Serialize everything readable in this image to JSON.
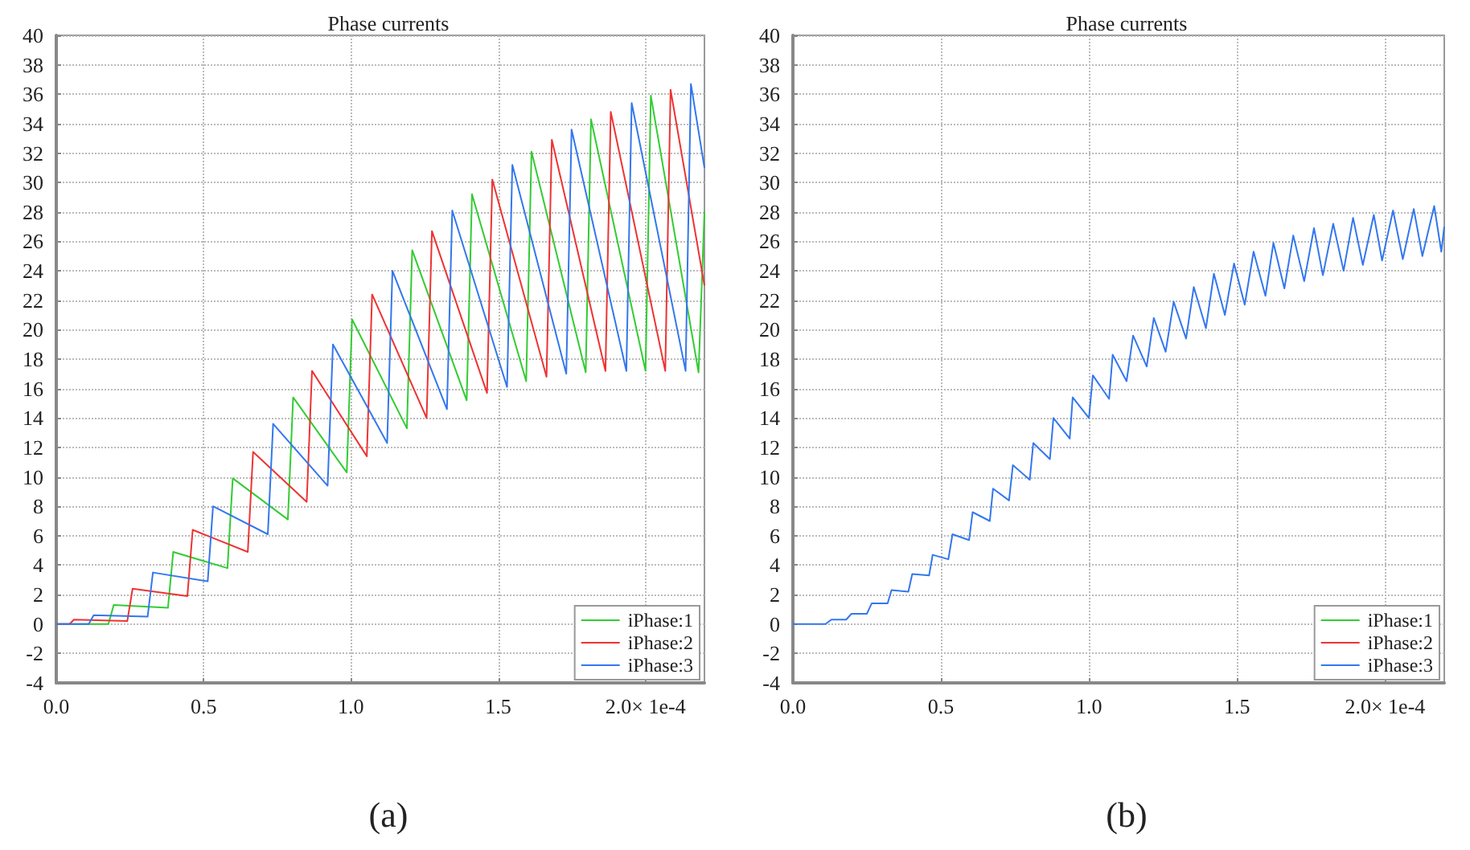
{
  "chart_data": [
    {
      "type": "line",
      "title": "Phase currents",
      "annotations": [
        "(a)"
      ],
      "xlim": [
        0,
        2.2
      ],
      "ylim": [
        -4,
        40
      ],
      "xticks": [
        {
          "value": 0,
          "label": "0.0"
        },
        {
          "value": 0.5,
          "label": "0.5"
        },
        {
          "value": 1,
          "label": "1.0"
        },
        {
          "value": 1.5,
          "label": "1.5"
        },
        {
          "value": 2,
          "label": "2.0× 1e-4"
        }
      ],
      "yticks": [
        -4,
        -2,
        0,
        2,
        4,
        6,
        8,
        10,
        12,
        14,
        16,
        18,
        20,
        22,
        24,
        26,
        28,
        30,
        32,
        34,
        36,
        38,
        40
      ],
      "grid": true,
      "legend": "bottom right",
      "series": [
        {
          "name": "iPhase:1",
          "color": "#33cc33",
          "x": [
            0,
            0.177,
            0.195,
            0.379,
            0.397,
            0.581,
            0.599,
            0.786,
            0.804,
            0.986,
            1.004,
            1.19,
            1.208,
            1.393,
            1.411,
            1.595,
            1.613,
            1.797,
            1.815,
            2.0,
            2.018,
            2.18,
            2.2
          ],
          "values": [
            0,
            0,
            1.3,
            1.1,
            4.9,
            3.8,
            9.9,
            7.1,
            15.4,
            10.3,
            20.7,
            13.3,
            25.4,
            15.2,
            29.2,
            16.5,
            32.1,
            17.1,
            34.3,
            17.2,
            35.9,
            17.1,
            28
          ]
        },
        {
          "name": "iPhase:2",
          "color": "#ee3333",
          "x": [
            0,
            0.045,
            0.06,
            0.241,
            0.259,
            0.445,
            0.463,
            0.65,
            0.668,
            0.85,
            0.868,
            1.054,
            1.072,
            1.257,
            1.275,
            1.462,
            1.48,
            1.664,
            1.682,
            1.864,
            1.882,
            2.067,
            2.085,
            2.2
          ],
          "values": [
            0,
            0,
            0.3,
            0.2,
            2.4,
            1.9,
            6.4,
            4.9,
            11.7,
            8.3,
            17.2,
            11.4,
            22.4,
            14,
            26.7,
            15.7,
            30.2,
            16.8,
            32.9,
            17.2,
            34.8,
            17.2,
            36.3,
            23
          ]
        },
        {
          "name": "iPhase:3",
          "color": "#3377ee",
          "x": [
            0,
            0.11,
            0.127,
            0.31,
            0.328,
            0.514,
            0.532,
            0.718,
            0.736,
            0.921,
            0.939,
            1.123,
            1.141,
            1.326,
            1.344,
            1.53,
            1.548,
            1.731,
            1.749,
            1.935,
            1.953,
            2.136,
            2.154,
            2.2
          ],
          "values": [
            0,
            0,
            0.6,
            0.5,
            3.5,
            2.9,
            8,
            6.1,
            13.6,
            9.4,
            19,
            12.3,
            24,
            14.6,
            28.1,
            16.1,
            31.2,
            17,
            33.6,
            17.2,
            35.4,
            17.2,
            36.7,
            31
          ]
        }
      ]
    },
    {
      "type": "line",
      "title": "Phase currents",
      "annotations": [
        "(b)"
      ],
      "xlim": [
        0,
        2.2
      ],
      "ylim": [
        -4,
        40
      ],
      "xticks": [
        {
          "value": 0,
          "label": "0.0"
        },
        {
          "value": 0.5,
          "label": "0.5"
        },
        {
          "value": 1,
          "label": "1.0"
        },
        {
          "value": 1.5,
          "label": "1.5"
        },
        {
          "value": 2,
          "label": "2.0× 1e-4"
        }
      ],
      "yticks": [
        -4,
        -2,
        0,
        2,
        4,
        6,
        8,
        10,
        12,
        14,
        16,
        18,
        20,
        22,
        24,
        26,
        28,
        30,
        32,
        34,
        36,
        38,
        40
      ],
      "grid": true,
      "legend": "bottom right",
      "x": [
        0,
        0.11,
        0.13,
        0.18,
        0.198,
        0.25,
        0.266,
        0.32,
        0.333,
        0.39,
        0.403,
        0.46,
        0.472,
        0.525,
        0.539,
        0.595,
        0.607,
        0.665,
        0.676,
        0.73,
        0.743,
        0.8,
        0.812,
        0.868,
        0.88,
        0.935,
        0.945,
        1.0,
        1.013,
        1.068,
        1.08,
        1.127,
        1.149,
        1.195,
        1.219,
        1.259,
        1.286,
        1.328,
        1.354,
        1.395,
        1.422,
        1.459,
        1.49,
        1.526,
        1.556,
        1.596,
        1.623,
        1.66,
        1.69,
        1.727,
        1.76,
        1.79,
        1.825,
        1.86,
        1.892,
        1.925,
        1.962,
        1.99,
        2.027,
        2.06,
        2.097,
        2.126,
        2.166,
        2.19,
        2.2
      ],
      "series": [
        {
          "name": "iPhase:1",
          "color": "#33cc33",
          "values": [
            null,
            null,
            null,
            null,
            null,
            null,
            null,
            null,
            null,
            null,
            null,
            null,
            null,
            null,
            null,
            null,
            null,
            null,
            null,
            null,
            null,
            null,
            null,
            null,
            null,
            null,
            null,
            null,
            null,
            null,
            null,
            null,
            null,
            null,
            null,
            null,
            null,
            null,
            null,
            null,
            null,
            null,
            null,
            null,
            null,
            null,
            null,
            null,
            null,
            null,
            null,
            null,
            null,
            null,
            null,
            null,
            null,
            null,
            null,
            null,
            null,
            null,
            null,
            null,
            null
          ]
        },
        {
          "name": "iPhase:2",
          "color": "#ee3333",
          "values": [
            null,
            null,
            null,
            null,
            null,
            null,
            null,
            null,
            null,
            null,
            null,
            null,
            null,
            null,
            null,
            null,
            null,
            null,
            null,
            null,
            null,
            null,
            null,
            null,
            null,
            null,
            null,
            null,
            null,
            null,
            null,
            null,
            null,
            null,
            null,
            null,
            null,
            null,
            null,
            null,
            null,
            null,
            null,
            null,
            null,
            null,
            null,
            null,
            null,
            null,
            null,
            null,
            null,
            null,
            null,
            null,
            null,
            null,
            null,
            null,
            null,
            null,
            null,
            null,
            null
          ]
        },
        {
          "name": "iPhase:3",
          "color": "#3377ee",
          "values": [
            0,
            0,
            0.3,
            0.3,
            0.7,
            0.7,
            1.4,
            1.4,
            2.3,
            2.2,
            3.4,
            3.3,
            4.7,
            4.4,
            6.1,
            5.7,
            7.6,
            7,
            9.2,
            8.4,
            10.8,
            9.8,
            12.3,
            11.2,
            14,
            12.6,
            15.4,
            14,
            16.9,
            15.3,
            18.3,
            16.5,
            19.6,
            17.5,
            20.8,
            18.5,
            21.9,
            19.4,
            22.9,
            20.1,
            23.8,
            21,
            24.5,
            21.7,
            25.3,
            22.3,
            25.9,
            22.8,
            26.4,
            23.3,
            26.9,
            23.7,
            27.2,
            24,
            27.6,
            24.4,
            27.8,
            24.7,
            28.1,
            24.8,
            28.2,
            25,
            28.4,
            25.3,
            27
          ]
        }
      ]
    }
  ]
}
